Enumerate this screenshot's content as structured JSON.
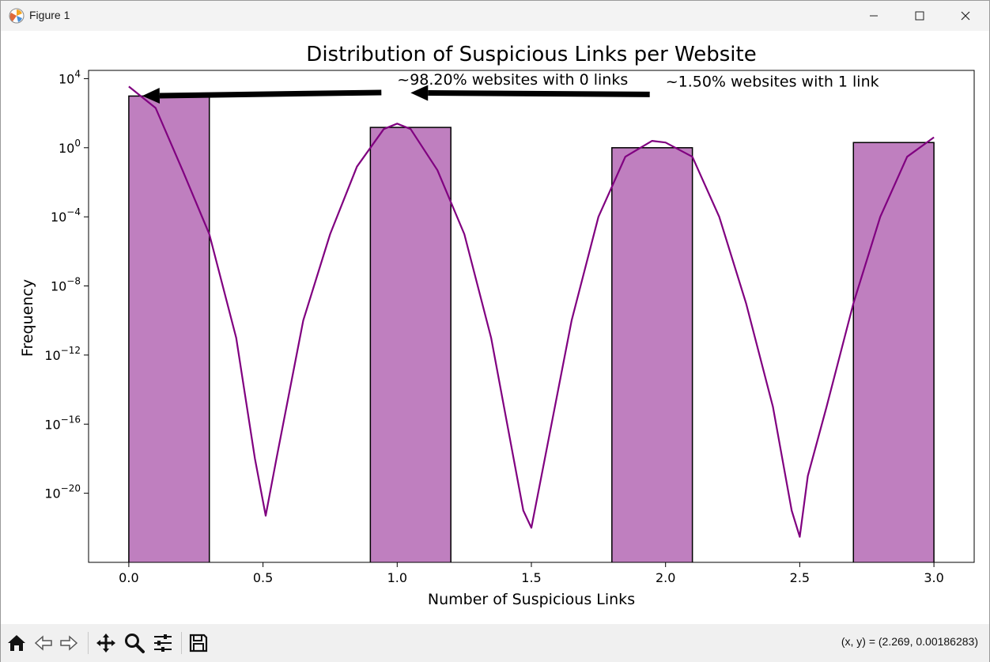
{
  "window": {
    "title": "Figure 1"
  },
  "toolbar": {
    "buttons": [
      {
        "name": "home-icon"
      },
      {
        "name": "back-icon"
      },
      {
        "name": "forward-icon"
      },
      {
        "name": "pan-icon"
      },
      {
        "name": "zoom-icon"
      },
      {
        "name": "configure-subplots-icon"
      },
      {
        "name": "save-icon"
      }
    ],
    "coords_text": "(x, y) = (2.269, 0.00186283)"
  },
  "chart_data": {
    "type": "bar",
    "title": "Distribution of Suspicious Links per Website",
    "xlabel": "Number of Suspicious Links",
    "ylabel": "Frequency",
    "yscale": "log",
    "xlim": [
      -0.15,
      3.15
    ],
    "ylim": [
      1e-24,
      30000
    ],
    "xticks": [
      0.0,
      0.5,
      1.0,
      1.5,
      2.0,
      2.5,
      3.0
    ],
    "xtick_labels": [
      "0.0",
      "0.5",
      "1.0",
      "1.5",
      "2.0",
      "2.5",
      "3.0"
    ],
    "yticks": [
      {
        "value": 10000.0,
        "base": "10",
        "exp": "4"
      },
      {
        "value": 1,
        "base": "10",
        "exp": "0"
      },
      {
        "value": 0.0001,
        "base": "10",
        "exp": "−4"
      },
      {
        "value": 1e-08,
        "base": "10",
        "exp": "−8"
      },
      {
        "value": 1e-12,
        "base": "10",
        "exp": "−12"
      },
      {
        "value": 1e-16,
        "base": "10",
        "exp": "−16"
      },
      {
        "value": 1e-20,
        "base": "10",
        "exp": "−20"
      }
    ],
    "bars": [
      {
        "x_start": 0.0,
        "x_end": 0.3,
        "value": 982
      },
      {
        "x_start": 0.9,
        "x_end": 1.2,
        "value": 15
      },
      {
        "x_start": 1.8,
        "x_end": 2.1,
        "value": 1
      },
      {
        "x_start": 2.7,
        "x_end": 3.0,
        "value": 2
      }
    ],
    "kde": {
      "color": "#800080",
      "points": [
        [
          0.0,
          3500
        ],
        [
          0.1,
          200
        ],
        [
          0.2,
          0.05
        ],
        [
          0.3,
          1e-05
        ],
        [
          0.4,
          1e-11
        ],
        [
          0.47,
          1e-18
        ],
        [
          0.51,
          5e-22
        ],
        [
          0.55,
          1e-18
        ],
        [
          0.65,
          1e-10
        ],
        [
          0.75,
          1e-05
        ],
        [
          0.85,
          0.08
        ],
        [
          0.95,
          12
        ],
        [
          1.0,
          25
        ],
        [
          1.05,
          12
        ],
        [
          1.15,
          0.05
        ],
        [
          1.25,
          1e-05
        ],
        [
          1.35,
          1e-11
        ],
        [
          1.47,
          1e-21
        ],
        [
          1.5,
          1e-22
        ],
        [
          1.55,
          1e-18
        ],
        [
          1.65,
          1e-10
        ],
        [
          1.75,
          0.0001
        ],
        [
          1.85,
          0.3
        ],
        [
          1.95,
          2.5
        ],
        [
          2.0,
          2
        ],
        [
          2.1,
          0.3
        ],
        [
          2.2,
          0.0001
        ],
        [
          2.3,
          1e-09
        ],
        [
          2.4,
          1e-15
        ],
        [
          2.47,
          1e-21
        ],
        [
          2.5,
          3e-23
        ],
        [
          2.53,
          1e-19
        ],
        [
          2.6,
          1e-15
        ],
        [
          2.7,
          1e-09
        ],
        [
          2.8,
          0.0001
        ],
        [
          2.9,
          0.3
        ],
        [
          3.0,
          4
        ]
      ]
    },
    "bar_color": "#bf7fbf",
    "annotations": [
      {
        "text": "~98.20% websites with 0 links",
        "text_x": 1.0,
        "text_y": 4500,
        "arrow_to_x": 0.05,
        "arrow_to_y": 1000
      },
      {
        "text": "~1.50% websites with 1 link",
        "text_x": 2.0,
        "text_y": 3500,
        "arrow_to_x": 1.05,
        "arrow_to_y": 1500
      }
    ]
  }
}
